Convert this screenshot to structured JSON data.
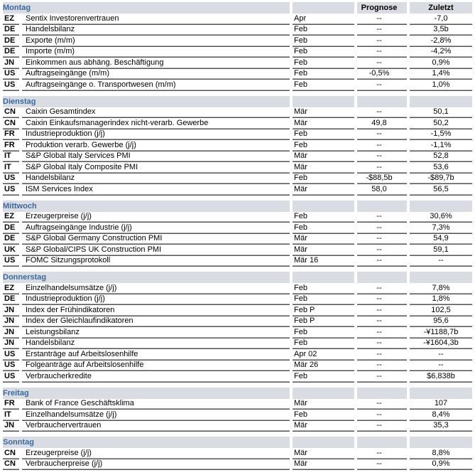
{
  "colors": {
    "day_name_blue": "#39699f",
    "section_header_bg": "#d9dde3",
    "row_line_dark": "#4e4f52",
    "row_line_light": "#a9abae"
  },
  "table": {
    "column_headers": {
      "forecast": "Prognose",
      "last": "Zuletzt"
    },
    "sections": [
      {
        "day": "Montag",
        "show_column_headers": true,
        "rows": [
          {
            "country": "EZ",
            "event": "Sentix Investorenvertrauen",
            "period": "Apr",
            "forecast": "--",
            "last": "-7,0"
          },
          {
            "country": "DE",
            "event": "Handelsbilanz",
            "period": "Feb",
            "forecast": "--",
            "last": "3,5b"
          },
          {
            "country": "DE",
            "event": "Exporte (m/m)",
            "period": "Feb",
            "forecast": "--",
            "last": "-2,8%"
          },
          {
            "country": "DE",
            "event": "Importe (m/m)",
            "period": "Feb",
            "forecast": "--",
            "last": "-4,2%"
          },
          {
            "country": "JN",
            "event": "Einkommen aus abhäng. Beschäftigung",
            "period": "Feb",
            "forecast": "--",
            "last": "0,9%"
          },
          {
            "country": "US",
            "event": "Auftragseingänge (m/m)",
            "period": "Feb",
            "forecast": "-0,5%",
            "last": "1,4%"
          },
          {
            "country": "US",
            "event": "Auftragseingänge o. Transportwesen (m/m)",
            "period": "Feb",
            "forecast": "--",
            "last": "1,0%"
          }
        ]
      },
      {
        "day": "Dienstag",
        "show_column_headers": false,
        "rows": [
          {
            "country": "CN",
            "event": "Caixin Gesamtindex",
            "period": "Mär",
            "forecast": "--",
            "last": "50,1"
          },
          {
            "country": "CN",
            "event": "Caixin Einkaufsmanagerindex nicht-verarb. Gewerbe",
            "period": "Mär",
            "forecast": "49,8",
            "last": "50,2"
          },
          {
            "country": "FR",
            "event": "Industrieproduktion (j/j)",
            "period": "Feb",
            "forecast": "--",
            "last": "-1,5%"
          },
          {
            "country": "FR",
            "event": "Produktion verarb. Gewerbe (j/j)",
            "period": "Feb",
            "forecast": "--",
            "last": "-1,1%"
          },
          {
            "country": "IT",
            "event": "S&P Global Italy Services PMI",
            "period": "Mär",
            "forecast": "--",
            "last": "52,8"
          },
          {
            "country": "IT",
            "event": "S&P Global Italy Composite PMI",
            "period": "Mär",
            "forecast": "--",
            "last": "53,6"
          },
          {
            "country": "US",
            "event": "Handelsbilanz",
            "period": "Feb",
            "forecast": "-$88,5b",
            "last": "-$89,7b"
          },
          {
            "country": "US",
            "event": "ISM Services Index",
            "period": "Mär",
            "forecast": "58,0",
            "last": "56,5"
          }
        ]
      },
      {
        "day": "Mittwoch",
        "show_column_headers": false,
        "rows": [
          {
            "country": "EZ",
            "event": "Erzeugerpreise (j/j)",
            "period": "Feb",
            "forecast": "--",
            "last": "30,6%"
          },
          {
            "country": "DE",
            "event": "Auftragseingänge Industrie (j/j)",
            "period": "Feb",
            "forecast": "--",
            "last": "7,3%"
          },
          {
            "country": "DE",
            "event": "S&P Global Germany Construction PMI",
            "period": "Mär",
            "forecast": "--",
            "last": "54,9"
          },
          {
            "country": "UK",
            "event": "S&P Global/CIPS UK Construction PMI",
            "period": "Mär",
            "forecast": "--",
            "last": "59,1"
          },
          {
            "country": "US",
            "event": "FOMC Sitzungsprotokoll",
            "period": "Mär 16",
            "forecast": "--",
            "last": "--"
          }
        ]
      },
      {
        "day": "Donnerstag",
        "show_column_headers": false,
        "rows": [
          {
            "country": "EZ",
            "event": "Einzelhandelsumsätze (j/j)",
            "period": "Feb",
            "forecast": "--",
            "last": "7,8%"
          },
          {
            "country": "DE",
            "event": "Industrieproduktion (j/j)",
            "period": "Feb",
            "forecast": "--",
            "last": "1,8%"
          },
          {
            "country": "JN",
            "event": "Index der Frühindikatoren",
            "period": "Feb P",
            "forecast": "--",
            "last": "102,5"
          },
          {
            "country": "JN",
            "event": "Index der Gleichlaufindikatoren",
            "period": "Feb P",
            "forecast": "--",
            "last": "95,6"
          },
          {
            "country": "JN",
            "event": "Leistungsbilanz",
            "period": "Feb",
            "forecast": "--",
            "last": "-¥1188,7b"
          },
          {
            "country": "JN",
            "event": "Handelsbilanz",
            "period": "Feb",
            "forecast": "--",
            "last": "-¥1604,3b"
          },
          {
            "country": "US",
            "event": "Erstanträge auf Arbeitslosenhilfe",
            "period": "Apr 02",
            "forecast": "--",
            "last": "--"
          },
          {
            "country": "US",
            "event": "Folgeanträge auf Arbeitslosenhilfe",
            "period": "Mär 26",
            "forecast": "--",
            "last": "--"
          },
          {
            "country": "US",
            "event": "Verbraucherkredite",
            "period": "Feb",
            "forecast": "--",
            "last": "$6,838b"
          }
        ]
      },
      {
        "day": "Freitag",
        "show_column_headers": false,
        "rows": [
          {
            "country": "FR",
            "event": "Bank of France Geschäftsklima",
            "period": "Mär",
            "forecast": "--",
            "last": "107"
          },
          {
            "country": "IT",
            "event": "Einzelhandelsumsätze (j/j)",
            "period": "Feb",
            "forecast": "--",
            "last": "8,4%"
          },
          {
            "country": "JN",
            "event": "Verbrauchervertrauen",
            "period": "Mär",
            "forecast": "--",
            "last": "35,3"
          }
        ]
      },
      {
        "day": "Sonntag",
        "show_column_headers": false,
        "rows": [
          {
            "country": "CN",
            "event": "Erzeugerpreise (j/j)",
            "period": "Mär",
            "forecast": "--",
            "last": "8,8%"
          },
          {
            "country": "CN",
            "event": "Verbraucherpreise (j/j)",
            "period": "Mär",
            "forecast": "--",
            "last": "0,9%"
          }
        ]
      }
    ]
  }
}
